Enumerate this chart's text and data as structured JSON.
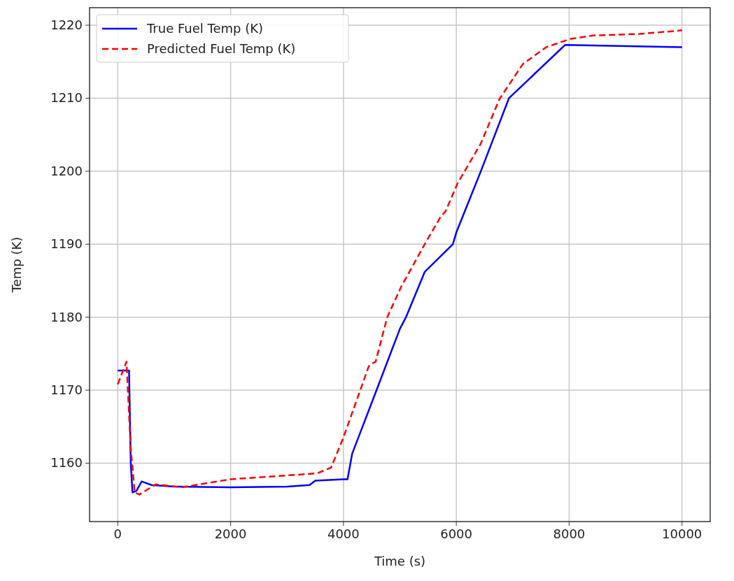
{
  "chart_data": {
    "type": "line",
    "xlabel": "Time (s)",
    "ylabel": "Temp (K)",
    "xlim": [
      -500,
      10500
    ],
    "ylim": [
      1152,
      1222.4
    ],
    "xticks": [
      0,
      2000,
      4000,
      6000,
      8000,
      10000
    ],
    "yticks": [
      1160,
      1170,
      1180,
      1190,
      1200,
      1210,
      1220
    ],
    "grid": true,
    "legend": "top left",
    "series": [
      {
        "name": "True Fuel Temp (K)",
        "color": "#0000ff",
        "line_style": "solid",
        "x": [
          0,
          200,
          230,
          260,
          330,
          423,
          600,
          1000,
          2000,
          3000,
          3400,
          3500,
          4000,
          4072,
          4154,
          4507,
          5000,
          5108,
          5440,
          5938,
          6000,
          6435,
          6933,
          7928,
          10000
        ],
        "values": [
          1172.7,
          1172.7,
          1160,
          1156.0,
          1156.2,
          1157.5,
          1157.0,
          1156.8,
          1156.7,
          1156.8,
          1157.0,
          1157.6,
          1157.8,
          1157.8,
          1161.3,
          1168.4,
          1178.4,
          1180.0,
          1186.2,
          1190.0,
          1191.6,
          1200.0,
          1210.0,
          1217.3,
          1217.0
        ]
      },
      {
        "name": "Predicted Fuel Temp (K)",
        "color": "#ff0000",
        "line_style": "dashed",
        "x": [
          0,
          154,
          230,
          300,
          383,
          672,
          1128,
          2000,
          3533,
          3781,
          3989,
          4445,
          4486,
          4570,
          4776,
          5025,
          5440,
          5726,
          5809,
          6020,
          6435,
          6766,
          7182,
          7596,
          8010,
          8425,
          9254,
          10000
        ],
        "values": [
          1170.8,
          1173.9,
          1162,
          1156.0,
          1155.7,
          1157.1,
          1156.7,
          1157.8,
          1158.6,
          1159.4,
          1163.3,
          1173.2,
          1173.6,
          1173.9,
          1180.0,
          1184.2,
          1190.0,
          1193.8,
          1194.5,
          1198.3,
          1203.8,
          1209.9,
          1214.7,
          1217.0,
          1218.1,
          1218.6,
          1218.8,
          1219.3
        ]
      }
    ]
  }
}
